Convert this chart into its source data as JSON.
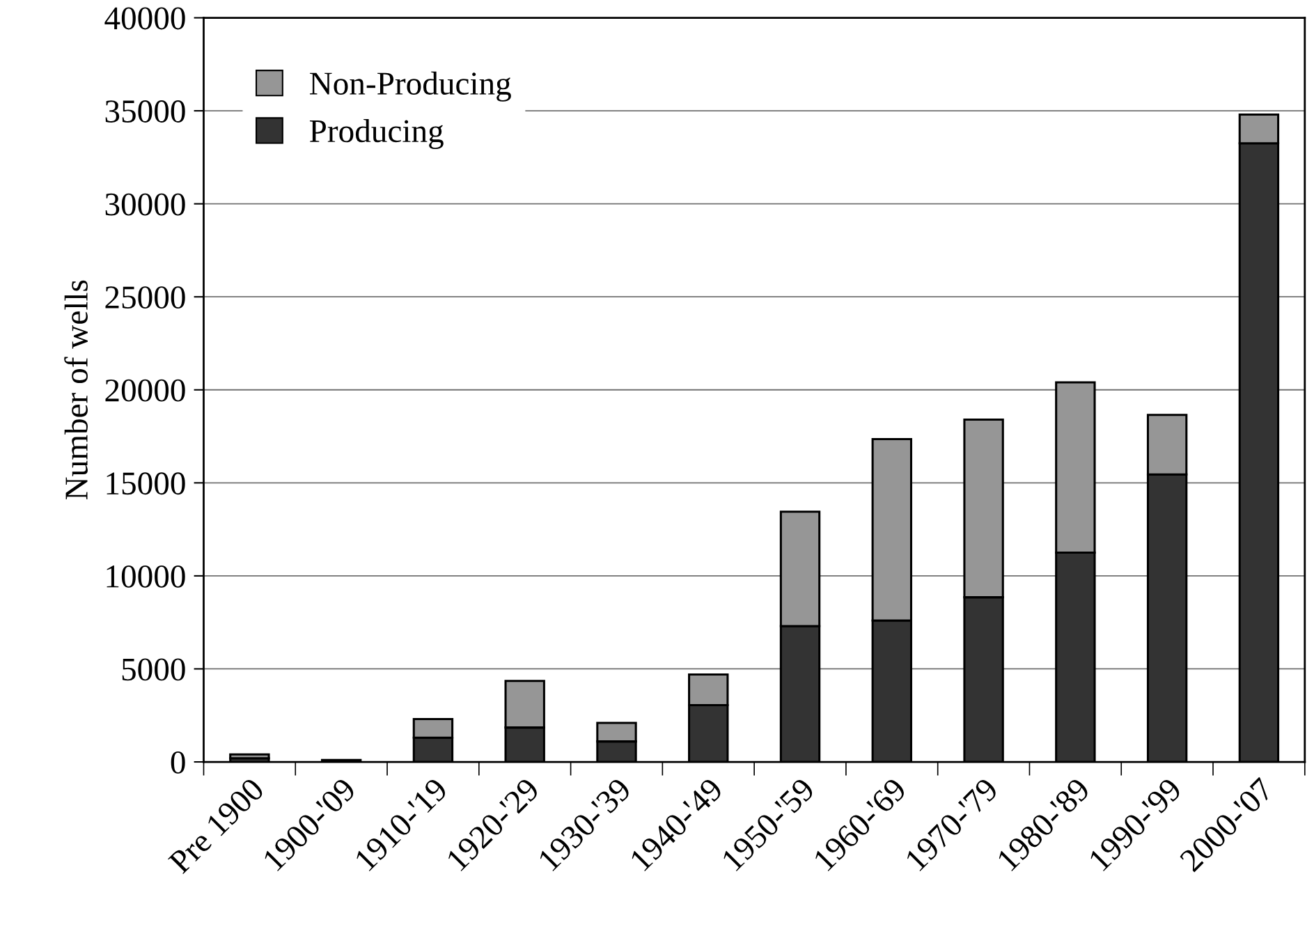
{
  "chart_data": {
    "type": "bar",
    "stacked": true,
    "ylabel": "Number of wells",
    "categories": [
      "Pre 1900",
      "1900-'09",
      "1910-'19",
      "1920-'29",
      "1930-'39",
      "1940-'49",
      "1950-'59",
      "1960-'69",
      "1970-'79",
      "1980-'89",
      "1990-'99",
      "2000-'07"
    ],
    "series": [
      {
        "name": "Producing",
        "color": "#333333",
        "values": [
          200,
          100,
          1300,
          1850,
          1100,
          3050,
          7300,
          7600,
          8850,
          11250,
          15450,
          33250
        ]
      },
      {
        "name": "Non-Producing",
        "color": "#969696",
        "values": [
          200,
          null,
          1000,
          2500,
          1000,
          1650,
          6150,
          9750,
          9550,
          9150,
          3200,
          1550
        ]
      }
    ],
    "ylim": [
      0,
      40000
    ],
    "yticks": [
      0,
      5000,
      10000,
      15000,
      20000,
      25000,
      30000,
      35000,
      40000
    ],
    "grid": "y",
    "legend": "top left"
  }
}
